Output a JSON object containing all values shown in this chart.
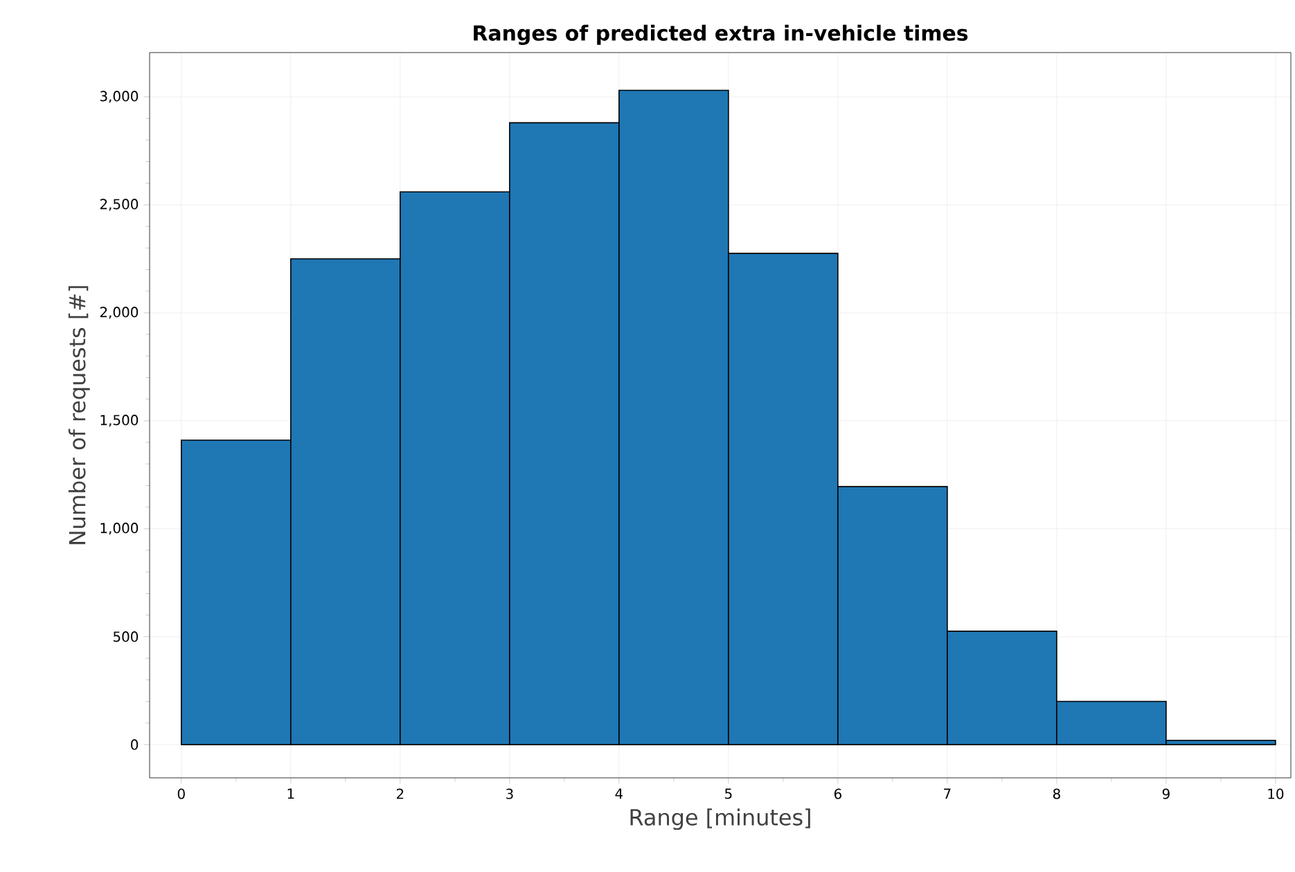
{
  "chart_data": {
    "type": "histogram",
    "title": "Ranges of predicted extra in-vehicle times",
    "xlabel": "Range [minutes]",
    "ylabel": "Number of requests [#]",
    "bins": [
      0,
      1,
      2,
      3,
      4,
      5,
      6,
      7,
      8,
      9,
      10
    ],
    "values": [
      1410,
      2250,
      2560,
      2880,
      3030,
      2275,
      1195,
      525,
      200,
      20
    ],
    "color": "#1f77b4",
    "xlim": [
      -0.29,
      10.14
    ],
    "xticks": [
      0,
      1,
      2,
      3,
      4,
      5,
      6,
      7,
      8,
      9,
      10
    ],
    "ylim": [
      -154,
      3205
    ],
    "yticks": [
      0,
      500,
      {
        "value": 1000,
        "label": "1,000"
      },
      {
        "value": 1500,
        "label": "1,500"
      },
      {
        "value": 2000,
        "label": "2,000"
      },
      {
        "value": 2500,
        "label": "2,500"
      },
      {
        "value": 3000,
        "label": "3,000"
      }
    ],
    "grid": true
  }
}
